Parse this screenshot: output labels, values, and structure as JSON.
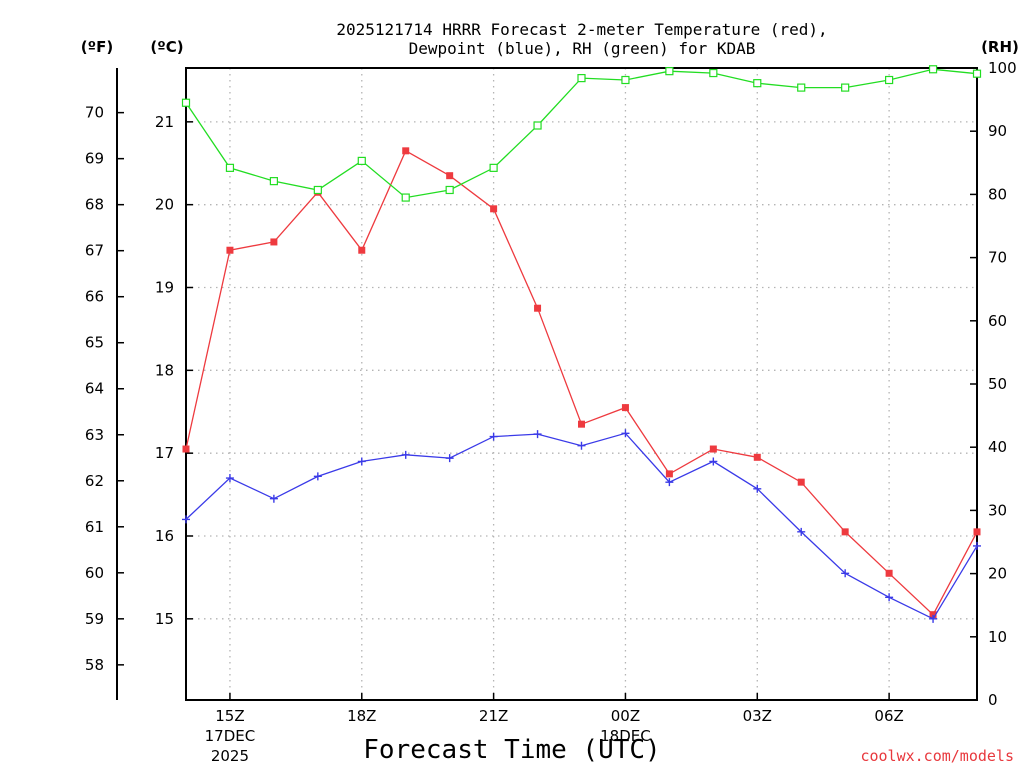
{
  "chart_data": {
    "type": "line",
    "title_line1": "2025121714 HRRR Forecast 2-meter Temperature (red),",
    "title_line2": "Dewpoint (blue), RH (green) for KDAB",
    "xlabel": "Forecast Time (UTC)",
    "credit": "coolwx.com/models",
    "units": {
      "fahrenheit": "(ºF)",
      "celsius": "(ºC)",
      "rh": "(RH)"
    },
    "x_hours": [
      14,
      15,
      16,
      17,
      18,
      19,
      20,
      21,
      22,
      23,
      24,
      25,
      26,
      27,
      28,
      29,
      30,
      31,
      32
    ],
    "x_ticks": [
      {
        "hour": 15,
        "label": "15Z",
        "sub1": "17DEC",
        "sub2": "2025"
      },
      {
        "hour": 18,
        "label": "18Z",
        "sub1": "",
        "sub2": ""
      },
      {
        "hour": 21,
        "label": "21Z",
        "sub1": "",
        "sub2": ""
      },
      {
        "hour": 24,
        "label": "00Z",
        "sub1": "18DEC",
        "sub2": ""
      },
      {
        "hour": 27,
        "label": "03Z",
        "sub1": "",
        "sub2": ""
      },
      {
        "hour": 30,
        "label": "06Z",
        "sub1": "",
        "sub2": ""
      }
    ],
    "x_range": [
      14,
      32
    ],
    "celsius_range": [
      14.02,
      21.65
    ],
    "celsius_ticks": [
      "15",
      "16",
      "17",
      "18",
      "19",
      "20",
      "21"
    ],
    "fahrenheit_ticks": [
      "58",
      "59",
      "60",
      "61",
      "62",
      "63",
      "64",
      "65",
      "66",
      "67",
      "68",
      "69",
      "70"
    ],
    "rh_range": [
      0,
      100
    ],
    "rh_ticks": [
      "0",
      "10",
      "20",
      "30",
      "40",
      "50",
      "60",
      "70",
      "80",
      "90",
      "100"
    ],
    "series": [
      {
        "name": "Temperature",
        "color": "#ee3a3f",
        "marker": "filled-square",
        "values": [
          17.05,
          19.45,
          19.55,
          20.15,
          19.45,
          20.65,
          20.35,
          19.95,
          18.75,
          17.35,
          17.55,
          16.75,
          17.05,
          16.95,
          16.65,
          16.05,
          15.55,
          15.05,
          16.05
        ]
      },
      {
        "name": "Dewpoint",
        "color": "#3a3ae8",
        "marker": "plus",
        "values": [
          16.2,
          16.7,
          16.45,
          16.72,
          16.9,
          16.98,
          16.94,
          17.2,
          17.23,
          17.09,
          17.24,
          16.65,
          16.9,
          16.57,
          16.05,
          15.55,
          15.26,
          15.0,
          15.88
        ]
      },
      {
        "name": "RH",
        "color": "#22dd22",
        "marker": "open-square",
        "values": [
          94.5,
          84.2,
          82.1,
          80.7,
          85.3,
          79.5,
          80.7,
          84.2,
          90.9,
          98.4,
          98.1,
          99.5,
          99.2,
          97.6,
          96.9,
          96.9,
          98.1,
          99.8,
          99.1
        ]
      }
    ]
  }
}
